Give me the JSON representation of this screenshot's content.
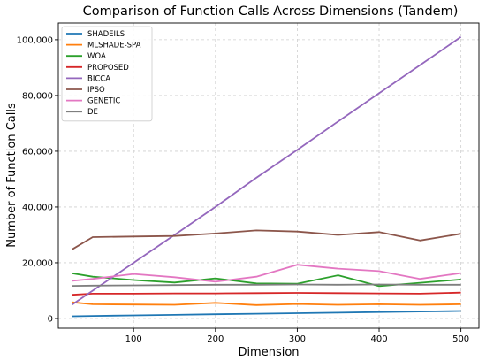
{
  "chart_data": {
    "type": "line",
    "title": "Comparison of Function Calls Across Dimensions (Tandem)",
    "xlabel": "Dimension",
    "ylabel": "Number of Function Calls",
    "xlim": [
      8,
      522
    ],
    "ylim": [
      -3500,
      106000
    ],
    "xticks": [
      100,
      200,
      300,
      400,
      500
    ],
    "yticks": [
      0,
      20000,
      40000,
      60000,
      80000,
      100000
    ],
    "ytick_labels": [
      "0",
      "20,000",
      "40,000",
      "60,000",
      "80,000",
      "100,000"
    ],
    "grid": true,
    "legend_position": "top-left",
    "x": [
      25,
      50,
      100,
      150,
      200,
      250,
      300,
      350,
      400,
      450,
      500
    ],
    "series": [
      {
        "name": "SHADEILS",
        "color": "#1f77b4",
        "values": [
          800,
          900,
          1100,
          1300,
          1500,
          1700,
          1900,
          2100,
          2300,
          2500,
          2700
        ]
      },
      {
        "name": "MLSHADE-SPA",
        "color": "#ff7f0e",
        "values": [
          5800,
          5100,
          5000,
          4900,
          5600,
          4800,
          5200,
          4900,
          5100,
          4900,
          5100
        ]
      },
      {
        "name": "WOA",
        "color": "#2ca02c",
        "values": [
          16200,
          15000,
          13800,
          12900,
          14400,
          12600,
          12500,
          15500,
          11600,
          12800,
          14000
        ]
      },
      {
        "name": "PROPOSED",
        "color": "#d62728",
        "values": [
          8500,
          8900,
          8900,
          9000,
          9000,
          9100,
          9200,
          9100,
          9000,
          8900,
          9300
        ]
      },
      {
        "name": "BICCA",
        "color": "#9467bd",
        "values": [
          5000,
          10000,
          20000,
          30000,
          40000,
          50500,
          60500,
          70700,
          80800,
          90900,
          101000
        ]
      },
      {
        "name": "IPSO",
        "color": "#8c564b",
        "values": [
          24800,
          29200,
          29400,
          29600,
          30500,
          31600,
          31200,
          30000,
          31000,
          28000,
          30400
        ]
      },
      {
        "name": "GENETIC",
        "color": "#e377c2",
        "values": [
          13500,
          14200,
          16000,
          14800,
          13200,
          15000,
          19300,
          17900,
          17000,
          14200,
          16300
        ]
      },
      {
        "name": "DE",
        "color": "#7f7f7f",
        "values": [
          11700,
          11800,
          11900,
          12000,
          12100,
          12100,
          12200,
          12100,
          12200,
          12100,
          12100
        ]
      }
    ]
  }
}
